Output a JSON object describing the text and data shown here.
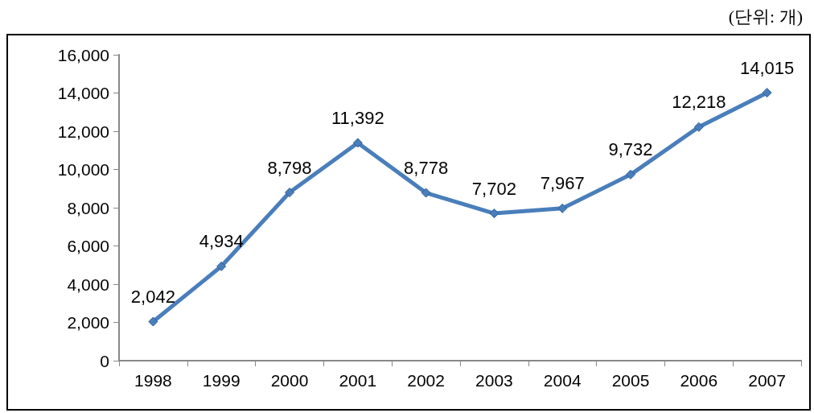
{
  "chart_data": {
    "type": "line",
    "categories": [
      "1998",
      "1999",
      "2000",
      "2001",
      "2002",
      "2003",
      "2004",
      "2005",
      "2006",
      "2007"
    ],
    "values": [
      2042,
      4934,
      8798,
      11392,
      8778,
      7702,
      7967,
      9732,
      12218,
      14015
    ],
    "value_labels": [
      "2,042",
      "4,934",
      "8,798",
      "11,392",
      "8,778",
      "7,702",
      "7,967",
      "9,732",
      "12,218",
      "14,015"
    ],
    "color": "#4a7ebb",
    "ylim": [
      0,
      16000
    ],
    "yticks": [
      {
        "value": 0,
        "label": "0"
      },
      {
        "value": 2000,
        "label": "2,000"
      },
      {
        "value": 4000,
        "label": "4,000"
      },
      {
        "value": 6000,
        "label": "6,000"
      },
      {
        "value": 8000,
        "label": "8,000"
      },
      {
        "value": 10000,
        "label": "10,000"
      },
      {
        "value": 12000,
        "label": "12,000"
      },
      {
        "value": 14000,
        "label": "14,000"
      },
      {
        "value": 16000,
        "label": "16,000"
      }
    ],
    "marker": "diamond",
    "line_style": "solid",
    "annotations": [
      "(단위: 개)"
    ]
  }
}
